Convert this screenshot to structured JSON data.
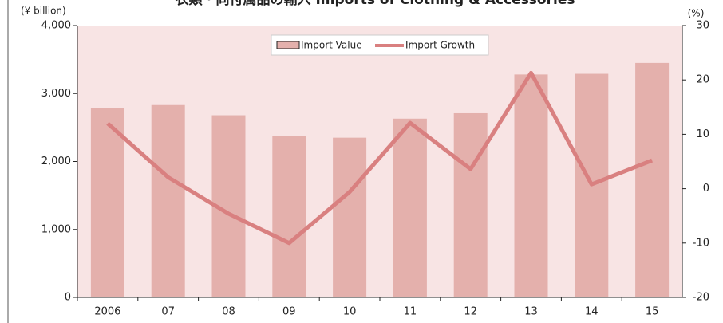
{
  "chart_data": {
    "type": "bar_line",
    "title": "衣類・同付属品の輸入 Imports of Clothing & Accessories",
    "y_label": "(¥ billion)",
    "y2_label": "(%)",
    "categories": [
      "2006",
      "07",
      "08",
      "09",
      "10",
      "11",
      "12",
      "13",
      "14",
      "15"
    ],
    "series": [
      {
        "name": "Import Value",
        "color": "#e4b0ac",
        "values": [
          2790,
          2830,
          2680,
          2380,
          2350,
          2630,
          2710,
          3280,
          3290,
          3450
        ]
      },
      {
        "name": "Import Growth",
        "color": "#d98080",
        "axis": "y2",
        "values": [
          12.0,
          2.1,
          -4.6,
          -10.0,
          -0.6,
          12.1,
          3.6,
          21.3,
          0.8,
          5.2
        ]
      }
    ],
    "ylim": [
      0,
      4000
    ],
    "yticks": [
      0,
      {
        "value": 1000,
        "label": "1,000"
      },
      {
        "value": 2000,
        "label": "2,000"
      },
      {
        "value": 3000,
        "label": "3,000"
      },
      {
        "value": 4000,
        "label": "4,000"
      }
    ],
    "y2lim": [
      -20,
      30
    ],
    "y2ticks": [
      -20,
      -10,
      0,
      10,
      20,
      30
    ],
    "legend": "top"
  }
}
